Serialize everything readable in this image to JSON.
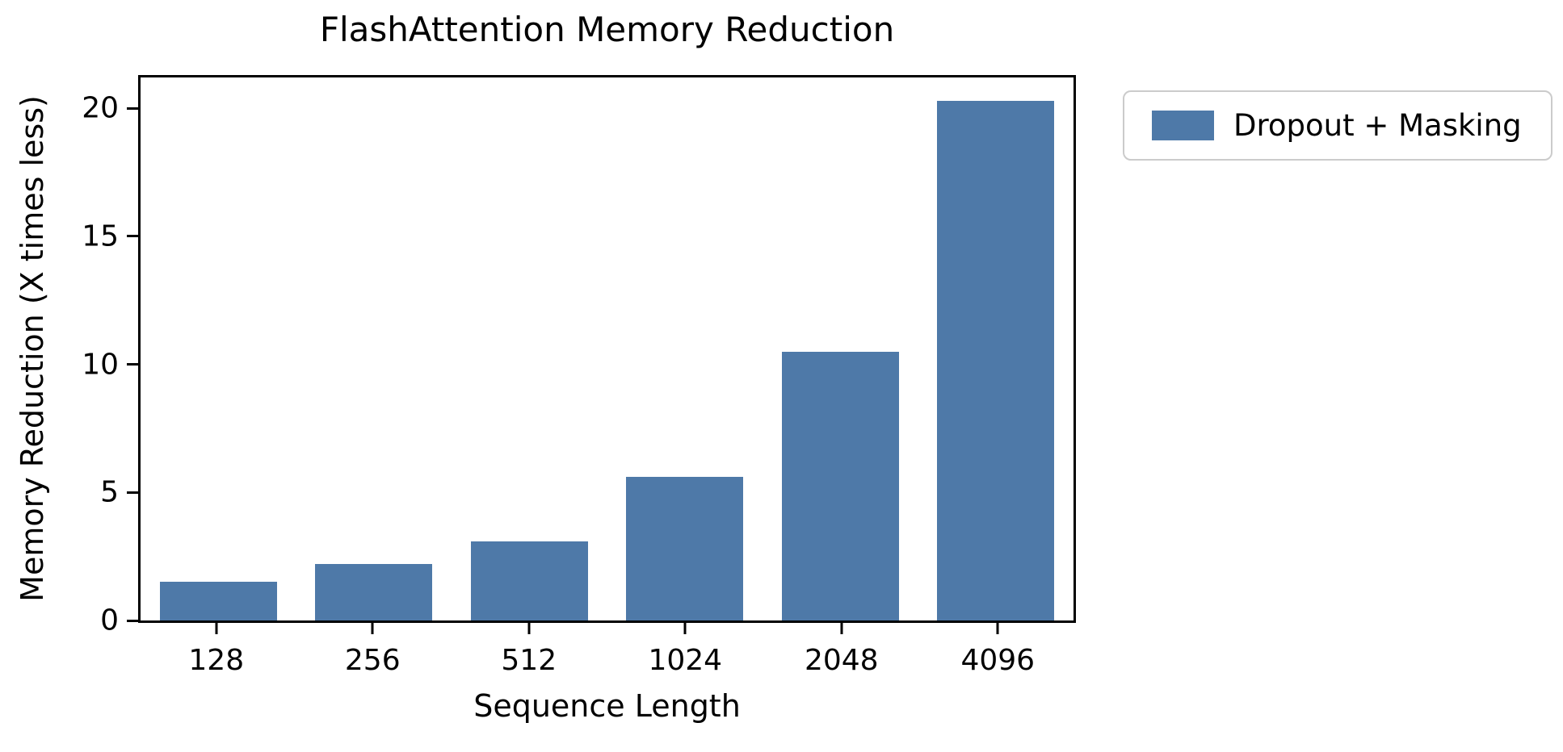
{
  "figure": {
    "background": "#ffffff",
    "axis_color": "#000000",
    "text_color": "#000000",
    "legend_border_color": "#cbcbcb"
  },
  "chart_data": {
    "type": "bar",
    "title": "FlashAttention Memory Reduction",
    "xlabel": "Sequence Length",
    "ylabel": "Memory Reduction (X times less)",
    "categories": [
      "128",
      "256",
      "512",
      "1024",
      "2048",
      "4096"
    ],
    "series": [
      {
        "name": "Dropout + Masking",
        "color": "#4E79A8",
        "values": [
          1.5,
          2.2,
          3.1,
          5.6,
          10.5,
          20.3
        ]
      }
    ],
    "ylim": [
      0,
      21.2
    ],
    "yticks": [
      0,
      5,
      10,
      15,
      20
    ],
    "grid": false,
    "legend": {
      "position": "outside-upper-right",
      "labels": [
        "Dropout + Masking"
      ]
    }
  }
}
